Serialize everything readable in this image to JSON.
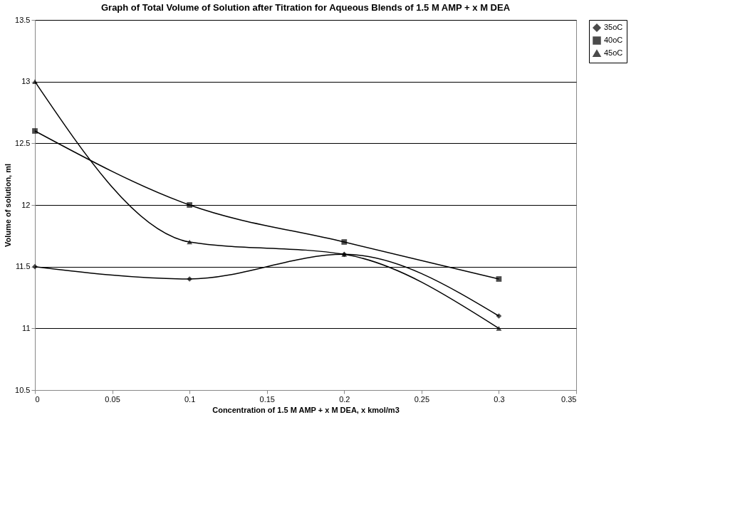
{
  "chart_data": {
    "type": "line",
    "title": "Graph of Total Volume of Solution after Titration for Aqueous Blends of 1.5 M AMP + x M DEA",
    "xlabel": "Concentration of 1.5 M AMP + x M DEA, x kmol/m3",
    "ylabel": "Volume of solution, ml",
    "x": [
      0,
      0.1,
      0.2,
      0.3
    ],
    "series": [
      {
        "name": "35oC",
        "color": "#000000",
        "marker": "diamond",
        "values": [
          11.5,
          11.4,
          11.6,
          11.1
        ]
      },
      {
        "name": "40oC",
        "color": "#000000",
        "marker": "square",
        "values": [
          12.6,
          12.0,
          11.7,
          11.4
        ]
      },
      {
        "name": "45oC",
        "color": "#000000",
        "marker": "triangle",
        "values": [
          13.0,
          11.7,
          11.6,
          11.0
        ]
      }
    ],
    "xlim": [
      0,
      0.35
    ],
    "xticks": [
      0,
      0.05,
      0.1,
      0.15,
      0.2,
      0.25,
      0.3,
      0.35
    ],
    "ylim": [
      10.5,
      13.5
    ],
    "yticks": [
      10.5,
      11,
      11.5,
      12,
      12.5,
      13,
      13.5
    ],
    "grid": "y",
    "legend": "right",
    "line_style": "solid"
  }
}
